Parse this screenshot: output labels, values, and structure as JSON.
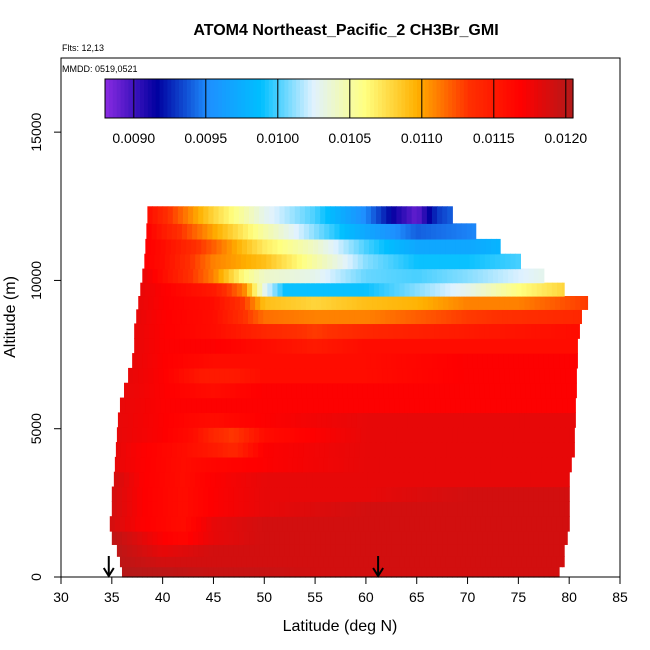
{
  "chart_data": {
    "type": "heatmap",
    "title": "ATOM4 Northeast_Pacific_2 CH3Br_GMI",
    "annotations": [
      "Flts: 12,13",
      "MMDD: 0519,0521"
    ],
    "xlabel": "Latitude (deg N)",
    "ylabel": "Altitude (m)",
    "xlim": [
      30,
      85
    ],
    "ylim": [
      0,
      17500
    ],
    "x_ticks": [
      "30",
      "35",
      "40",
      "45",
      "50",
      "55",
      "60",
      "65",
      "70",
      "75",
      "80",
      "85"
    ],
    "y_ticks": [
      "0",
      "5000",
      "10000",
      "15000"
    ],
    "colorbar": {
      "range": [
        0.0088,
        0.01205
      ],
      "tick_labels": [
        "0.0090",
        "0.0095",
        "0.0100",
        "0.0105",
        "0.0110",
        "0.0115",
        "0.0120"
      ],
      "colors": [
        "#8b2be2",
        "#0000a0",
        "#1e90ff",
        "#00bfff",
        "#e0f2ff",
        "#ffff80",
        "#ffb000",
        "#ff3000",
        "#ff0000",
        "#b21a1a"
      ]
    },
    "arrows_at_latitude": [
      34.7,
      61.2
    ],
    "grid": false,
    "curtain": [
      {
        "alt": 200,
        "lat_min": 36.0,
        "lat_max": 79.0,
        "profile": [
          [
            36,
            0.01203
          ],
          [
            40,
            0.012
          ],
          [
            45,
            0.01195
          ],
          [
            50,
            0.01195
          ],
          [
            55,
            0.0119
          ],
          [
            60,
            0.0119
          ],
          [
            65,
            0.0119
          ],
          [
            70,
            0.0119
          ],
          [
            75,
            0.0119
          ],
          [
            79,
            0.0119
          ]
        ]
      },
      {
        "alt": 500,
        "lat_min": 35.8,
        "lat_max": 79.5,
        "profile": [
          [
            35.8,
            0.012
          ],
          [
            40,
            0.0119
          ],
          [
            45,
            0.0119
          ],
          [
            50,
            0.0119
          ],
          [
            60,
            0.0119
          ],
          [
            70,
            0.0119
          ],
          [
            79.5,
            0.0119
          ]
        ]
      },
      {
        "alt": 900,
        "lat_min": 35.5,
        "lat_max": 79.5,
        "profile": [
          [
            35.5,
            0.012
          ],
          [
            40,
            0.0118
          ],
          [
            45,
            0.0119
          ],
          [
            50,
            0.0119
          ],
          [
            60,
            0.0119
          ],
          [
            70,
            0.0119
          ],
          [
            79.5,
            0.0119
          ]
        ]
      },
      {
        "alt": 1300,
        "lat_min": 35.0,
        "lat_max": 79.8,
        "profile": [
          [
            35,
            0.012
          ],
          [
            40,
            0.0117
          ],
          [
            42,
            0.01165
          ],
          [
            45,
            0.0118
          ],
          [
            50,
            0.0119
          ],
          [
            60,
            0.0119
          ],
          [
            70,
            0.0119
          ],
          [
            79.8,
            0.0119
          ]
        ]
      },
      {
        "alt": 1800,
        "lat_min": 34.8,
        "lat_max": 80.0,
        "profile": [
          [
            34.8,
            0.0119
          ],
          [
            38,
            0.0117
          ],
          [
            42,
            0.0116
          ],
          [
            45,
            0.0118
          ],
          [
            50,
            0.0119
          ],
          [
            60,
            0.0119
          ],
          [
            70,
            0.0119
          ],
          [
            80,
            0.0119
          ]
        ]
      },
      {
        "alt": 2300,
        "lat_min": 35.0,
        "lat_max": 80.0,
        "profile": [
          [
            35,
            0.0119
          ],
          [
            38,
            0.0117
          ],
          [
            42,
            0.0116
          ],
          [
            45,
            0.0117
          ],
          [
            50,
            0.0118
          ],
          [
            60,
            0.0119
          ],
          [
            70,
            0.0119
          ],
          [
            80,
            0.0119
          ]
        ]
      },
      {
        "alt": 2800,
        "lat_min": 35.0,
        "lat_max": 80.0,
        "profile": [
          [
            35,
            0.0119
          ],
          [
            38,
            0.0117
          ],
          [
            42,
            0.0116
          ],
          [
            45,
            0.0117
          ],
          [
            50,
            0.0118
          ],
          [
            60,
            0.0118
          ],
          [
            70,
            0.0119
          ],
          [
            80,
            0.0119
          ]
        ]
      },
      {
        "alt": 3300,
        "lat_min": 35.2,
        "lat_max": 80.0,
        "profile": [
          [
            35.2,
            0.0119
          ],
          [
            38,
            0.0117
          ],
          [
            42,
            0.0116
          ],
          [
            45,
            0.0117
          ],
          [
            50,
            0.0118
          ],
          [
            60,
            0.0118
          ],
          [
            70,
            0.0118
          ],
          [
            80,
            0.0118
          ]
        ]
      },
      {
        "alt": 3800,
        "lat_min": 35.3,
        "lat_max": 80.2,
        "profile": [
          [
            35.3,
            0.0118
          ],
          [
            38,
            0.0117
          ],
          [
            42,
            0.0116
          ],
          [
            45,
            0.01165
          ],
          [
            50,
            0.0117
          ],
          [
            60,
            0.0118
          ],
          [
            70,
            0.0118
          ],
          [
            80.2,
            0.0118
          ]
        ]
      },
      {
        "alt": 4300,
        "lat_min": 35.4,
        "lat_max": 80.5,
        "profile": [
          [
            35.4,
            0.0118
          ],
          [
            38,
            0.0117
          ],
          [
            42,
            0.0116
          ],
          [
            45,
            0.0115
          ],
          [
            47,
            0.0114
          ],
          [
            50,
            0.0117
          ],
          [
            60,
            0.0118
          ],
          [
            70,
            0.0118
          ],
          [
            80.5,
            0.0118
          ]
        ]
      },
      {
        "alt": 4800,
        "lat_min": 35.5,
        "lat_max": 80.5,
        "profile": [
          [
            35.5,
            0.0118
          ],
          [
            40,
            0.0117
          ],
          [
            43,
            0.0116
          ],
          [
            45,
            0.0114
          ],
          [
            47,
            0.0113
          ],
          [
            50,
            0.0116
          ],
          [
            60,
            0.0118
          ],
          [
            70,
            0.0118
          ],
          [
            80.5,
            0.0118
          ]
        ]
      },
      {
        "alt": 5300,
        "lat_min": 35.6,
        "lat_max": 80.6,
        "profile": [
          [
            35.6,
            0.0118
          ],
          [
            40,
            0.0117
          ],
          [
            45,
            0.0116
          ],
          [
            50,
            0.0117
          ],
          [
            60,
            0.0118
          ],
          [
            70,
            0.0118
          ],
          [
            80.6,
            0.0118
          ]
        ]
      },
      {
        "alt": 5800,
        "lat_min": 35.8,
        "lat_max": 80.6,
        "profile": [
          [
            35.8,
            0.0118
          ],
          [
            40,
            0.0117
          ],
          [
            45,
            0.0117
          ],
          [
            50,
            0.0117
          ],
          [
            60,
            0.0117
          ],
          [
            70,
            0.0117
          ],
          [
            80.6,
            0.0117
          ]
        ]
      },
      {
        "alt": 6300,
        "lat_min": 36.2,
        "lat_max": 80.7,
        "profile": [
          [
            36.2,
            0.0118
          ],
          [
            40,
            0.0117
          ],
          [
            45,
            0.0116
          ],
          [
            50,
            0.0117
          ],
          [
            60,
            0.0117
          ],
          [
            70,
            0.0117
          ],
          [
            80.7,
            0.0117
          ]
        ]
      },
      {
        "alt": 6800,
        "lat_min": 36.6,
        "lat_max": 80.7,
        "profile": [
          [
            36.6,
            0.0118
          ],
          [
            40,
            0.0117
          ],
          [
            44,
            0.0115
          ],
          [
            47,
            0.0115
          ],
          [
            50,
            0.0116
          ],
          [
            60,
            0.0116
          ],
          [
            70,
            0.0117
          ],
          [
            80.7,
            0.0117
          ]
        ]
      },
      {
        "alt": 7300,
        "lat_min": 37.0,
        "lat_max": 80.8,
        "profile": [
          [
            37,
            0.0118
          ],
          [
            40,
            0.0117
          ],
          [
            45,
            0.0116
          ],
          [
            50,
            0.0116
          ],
          [
            60,
            0.0116
          ],
          [
            70,
            0.0117
          ],
          [
            80.8,
            0.0117
          ]
        ]
      },
      {
        "alt": 7800,
        "lat_min": 37.2,
        "lat_max": 80.8,
        "profile": [
          [
            37.2,
            0.0118
          ],
          [
            40,
            0.0117
          ],
          [
            45,
            0.0117
          ],
          [
            50,
            0.0116
          ],
          [
            55,
            0.0115
          ],
          [
            60,
            0.0116
          ],
          [
            70,
            0.0116
          ],
          [
            80.8,
            0.0116
          ]
        ]
      },
      {
        "alt": 8300,
        "lat_min": 37.2,
        "lat_max": 81.0,
        "profile": [
          [
            37.2,
            0.0118
          ],
          [
            40,
            0.0117
          ],
          [
            45,
            0.0116
          ],
          [
            50,
            0.0114
          ],
          [
            55,
            0.0113
          ],
          [
            60,
            0.0114
          ],
          [
            70,
            0.0115
          ],
          [
            81,
            0.0116
          ]
        ]
      },
      {
        "alt": 8800,
        "lat_min": 37.4,
        "lat_max": 81.2,
        "profile": [
          [
            37.4,
            0.0118
          ],
          [
            40,
            0.0117
          ],
          [
            45,
            0.0116
          ],
          [
            50,
            0.01115
          ],
          [
            55,
            0.0111
          ],
          [
            60,
            0.0111
          ],
          [
            65,
            0.0112
          ],
          [
            70,
            0.0113
          ],
          [
            81.2,
            0.0114
          ]
        ]
      },
      {
        "alt": 9250,
        "lat_min": 37.6,
        "lat_max": 81.8,
        "profile": [
          [
            37.6,
            0.0118
          ],
          [
            40,
            0.0117
          ],
          [
            45,
            0.0116
          ],
          [
            48,
            0.0113
          ],
          [
            50,
            0.0109
          ],
          [
            55,
            0.0108
          ],
          [
            60,
            0.0109
          ],
          [
            65,
            0.01095
          ],
          [
            70,
            0.0111
          ],
          [
            75,
            0.0111
          ],
          [
            81.8,
            0.0113
          ]
        ]
      },
      {
        "alt": 9700,
        "lat_min": 37.8,
        "lat_max": 79.5,
        "profile": [
          [
            37.8,
            0.0118
          ],
          [
            40,
            0.0117
          ],
          [
            45,
            0.0115
          ],
          [
            48,
            0.0111
          ],
          [
            50,
            0.0103
          ],
          [
            52,
            0.0099
          ],
          [
            55,
            0.0099
          ],
          [
            60,
            0.0099
          ],
          [
            65,
            0.0101
          ],
          [
            70,
            0.0103
          ],
          [
            75,
            0.0106
          ],
          [
            79.5,
            0.0108
          ]
        ]
      },
      {
        "alt": 10150,
        "lat_min": 38.0,
        "lat_max": 77.5,
        "profile": [
          [
            38,
            0.0118
          ],
          [
            40,
            0.0116
          ],
          [
            45,
            0.0111
          ],
          [
            48,
            0.0106
          ],
          [
            50,
            0.0104
          ],
          [
            55,
            0.0103
          ],
          [
            60,
            0.01005
          ],
          [
            65,
            0.01
          ],
          [
            70,
            0.0101
          ],
          [
            77.5,
            0.0103
          ]
        ]
      },
      {
        "alt": 10650,
        "lat_min": 38.2,
        "lat_max": 75.2,
        "profile": [
          [
            38.2,
            0.0117
          ],
          [
            40,
            0.0116
          ],
          [
            45,
            0.0111
          ],
          [
            50,
            0.0109
          ],
          [
            55,
            0.0105
          ],
          [
            60,
            0.0101
          ],
          [
            65,
            0.0099
          ],
          [
            70,
            0.0099
          ],
          [
            75.2,
            0.01
          ]
        ]
      },
      {
        "alt": 11150,
        "lat_min": 38.3,
        "lat_max": 73.2,
        "profile": [
          [
            38.3,
            0.0117
          ],
          [
            40,
            0.0116
          ],
          [
            45,
            0.0112
          ],
          [
            50,
            0.0107
          ],
          [
            55,
            0.0104
          ],
          [
            60,
            0.01
          ],
          [
            65,
            0.0097
          ],
          [
            70,
            0.0097
          ],
          [
            73.2,
            0.0098
          ]
        ]
      },
      {
        "alt": 11650,
        "lat_min": 38.4,
        "lat_max": 70.8,
        "profile": [
          [
            38.4,
            0.0117
          ],
          [
            40,
            0.0115
          ],
          [
            45,
            0.011
          ],
          [
            50,
            0.0105
          ],
          [
            55,
            0.0101
          ],
          [
            60,
            0.0097
          ],
          [
            65,
            0.0094
          ],
          [
            70.8,
            0.0095
          ]
        ]
      },
      {
        "alt": 12200,
        "lat_min": 38.5,
        "lat_max": 68.5,
        "profile": [
          [
            38.5,
            0.0116
          ],
          [
            40,
            0.0114
          ],
          [
            45,
            0.0108
          ],
          [
            50,
            0.0103
          ],
          [
            55,
            0.01
          ],
          [
            60,
            0.0095
          ],
          [
            63,
            0.0091
          ],
          [
            65,
            0.0089
          ],
          [
            67,
            0.0093
          ],
          [
            68.5,
            0.0094
          ]
        ]
      }
    ]
  }
}
